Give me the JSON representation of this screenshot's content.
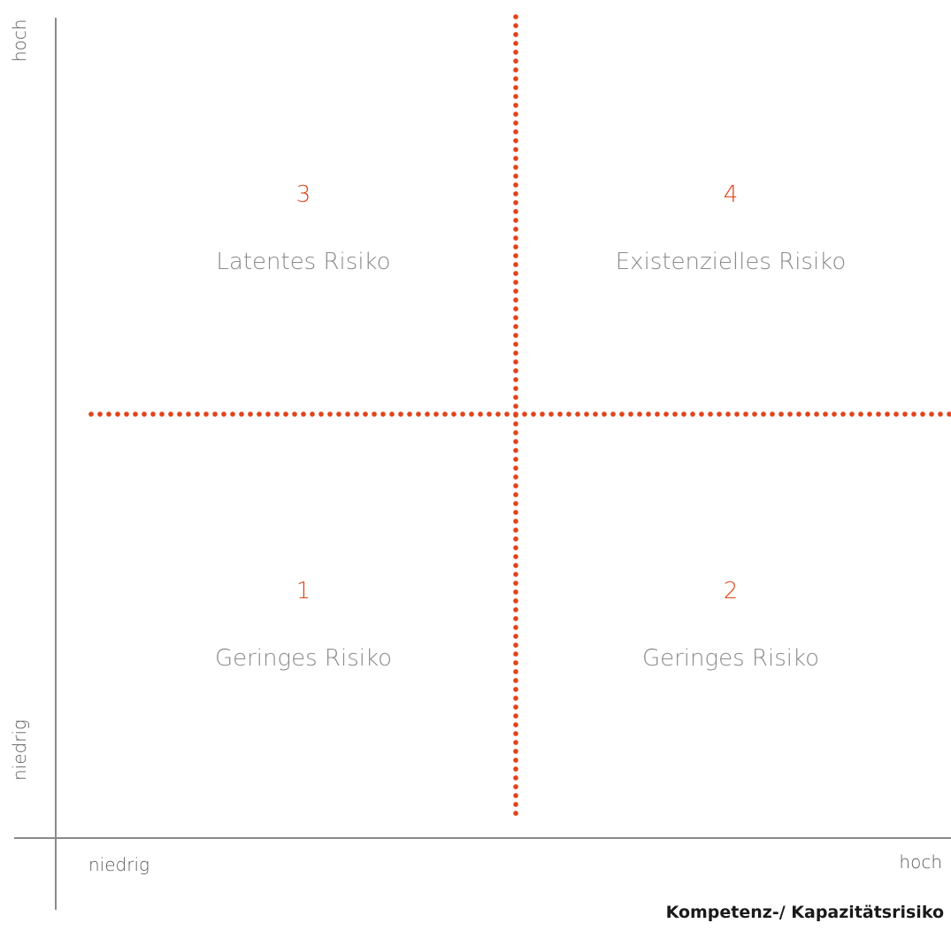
{
  "y_axis": {
    "high_label": "hoch",
    "low_label": "niedrig"
  },
  "x_axis": {
    "low_label": "niedrig",
    "high_label": "hoch",
    "title": "Kompetenz-/ Kapazitätsrisiko"
  },
  "colors": {
    "accent": "#e2431a",
    "label_gray": "#8a8a8a",
    "axis_gray": "#8a8a8a"
  },
  "quadrants": {
    "q1": {
      "number": "1",
      "label": "Geringes Risiko"
    },
    "q2": {
      "number": "2",
      "label": "Geringes Risiko"
    },
    "q3": {
      "number": "3",
      "label": "Latentes Risiko"
    },
    "q4": {
      "number": "4",
      "label": "Existenzielles Risiko"
    }
  }
}
